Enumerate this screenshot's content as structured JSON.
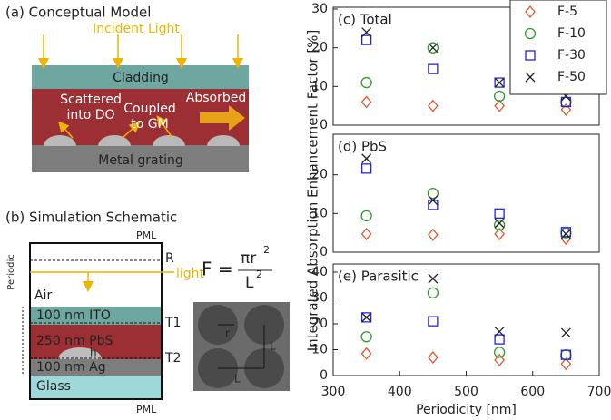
{
  "schematic": {
    "a": {
      "title": "(a) Conceptual Model",
      "incident": "Incident Light",
      "cladding": "Cladding",
      "scattered": [
        "Scattered",
        "into DO"
      ],
      "coupled": [
        "Coupled",
        "to GM"
      ],
      "absorbed": "Absorbed",
      "grating": "Metal grating"
    },
    "b": {
      "title": "(b) Simulation Schematic",
      "pml_top": "PML",
      "pml_bottom": "PML",
      "r_label": "R",
      "light": "light",
      "periodic": "Periodic",
      "air": "Air",
      "ito": "100 nm ITO",
      "t1": "T1",
      "pbs": "250 nm PbS",
      "h": "h",
      "t2": "T2",
      "ag": "100 nm Ag",
      "glass": "Glass",
      "formula": {
        "lhs": "F =",
        "numerator": "πr",
        "num_exp": "2",
        "denominator": "L",
        "den_exp": "2"
      },
      "pattern": {
        "r": "r",
        "l_vertical": "L",
        "l_horizontal": "L"
      }
    }
  },
  "chart_data": [
    {
      "type": "scatter",
      "title": "(c) Total",
      "ylabel": "Integrated Absorption Enhancement Factor [%]",
      "x": [
        350,
        450,
        550,
        650
      ],
      "xlim": [
        300,
        700
      ],
      "ylim": [
        0,
        30
      ],
      "yticks": [
        0,
        10,
        20,
        30
      ],
      "legend": "upper right",
      "series": [
        {
          "name": "F-5",
          "color": "#e2572f",
          "marker": "diamond",
          "values": [
            6,
            5,
            5,
            4
          ]
        },
        {
          "name": "F-10",
          "color": "#2e9a2e",
          "marker": "circle",
          "values": [
            11,
            20,
            7.5,
            6
          ]
        },
        {
          "name": "F-30",
          "color": "#2424d6",
          "marker": "square",
          "values": [
            22,
            14.5,
            11,
            6
          ]
        },
        {
          "name": "F-50",
          "color": "#222222",
          "marker": "x",
          "values": [
            24,
            20,
            11,
            7.5
          ]
        }
      ]
    },
    {
      "type": "scatter",
      "title": "(d) PbS",
      "x": [
        350,
        450,
        550,
        650
      ],
      "xlim": [
        300,
        700
      ],
      "ylim": [
        0,
        30
      ],
      "yticks": [
        0,
        10,
        20
      ],
      "series": [
        {
          "name": "F-5",
          "color": "#e2572f",
          "marker": "diamond",
          "values": [
            4.7,
            4.5,
            4.7,
            3.5
          ]
        },
        {
          "name": "F-10",
          "color": "#2e9a2e",
          "marker": "circle",
          "values": [
            9.4,
            15.2,
            7,
            5
          ]
        },
        {
          "name": "F-30",
          "color": "#2424d6",
          "marker": "square",
          "values": [
            21.6,
            12.2,
            10,
            5.2
          ]
        },
        {
          "name": "F-50",
          "color": "#222222",
          "marker": "x",
          "values": [
            24.2,
            13.4,
            7.5,
            4.7
          ]
        }
      ]
    },
    {
      "type": "scatter",
      "title": "(e) Parasitic",
      "xlabel": "Periodicity [nm]",
      "x": [
        350,
        450,
        550,
        650
      ],
      "xlim": [
        300,
        700
      ],
      "xticks": [
        300,
        400,
        500,
        600,
        700
      ],
      "ylim": [
        0,
        40
      ],
      "yticks": [
        0,
        10,
        20,
        30,
        40
      ],
      "series": [
        {
          "name": "F-5",
          "color": "#e2572f",
          "marker": "diamond",
          "values": [
            8.5,
            7,
            6,
            4.5
          ]
        },
        {
          "name": "F-10",
          "color": "#2e9a2e",
          "marker": "circle",
          "values": [
            15,
            32,
            9,
            8
          ]
        },
        {
          "name": "F-30",
          "color": "#2424d6",
          "marker": "square",
          "values": [
            22.5,
            21,
            14,
            8
          ]
        },
        {
          "name": "F-50",
          "color": "#222222",
          "marker": "x",
          "values": [
            22.5,
            37.5,
            17,
            16.5
          ]
        }
      ]
    }
  ]
}
